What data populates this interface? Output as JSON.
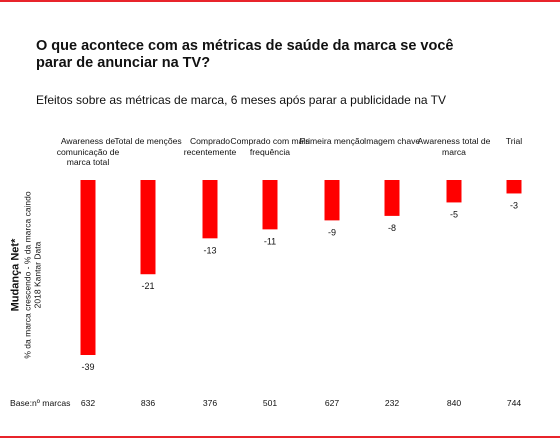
{
  "title": "O que acontece com as métricas de saúde da marca se você parar de anunciar na TV?",
  "subtitle": "Efeitos sobre as métricas de marca, 6 meses após parar a publicidade na TV",
  "ylabel": "Mudança Net*",
  "ysub_line1": "% da marca crescendo - % da marca caindo",
  "ysub_line2": "2018 Kantar Data",
  "base_title": "Base:nº marcas",
  "colors": {
    "bar": "#ff0000",
    "rule": "#e8242b",
    "text": "#111111"
  },
  "chart_data": {
    "type": "bar",
    "categories": [
      "Awareness de comunicação de marca total",
      "Total de menções",
      "Comprado recentemente",
      "Comprado com mais frequência",
      "Primeira menção",
      "Imagem chave",
      "Awareness total de marca",
      "Trial"
    ],
    "values": [
      -39,
      -21,
      -13,
      -11,
      -9,
      -8,
      -5,
      -3
    ],
    "data_labels": [
      "-39",
      "-21",
      "-13",
      "-11",
      "-9",
      "-8",
      "-5",
      "-3"
    ],
    "base_n": [
      "632",
      "836",
      "376",
      "501",
      "627",
      "232",
      "840",
      "744"
    ],
    "ylabel": "Mudança Net*",
    "ylim": [
      -39,
      0
    ],
    "grid": false,
    "legend": "none"
  }
}
